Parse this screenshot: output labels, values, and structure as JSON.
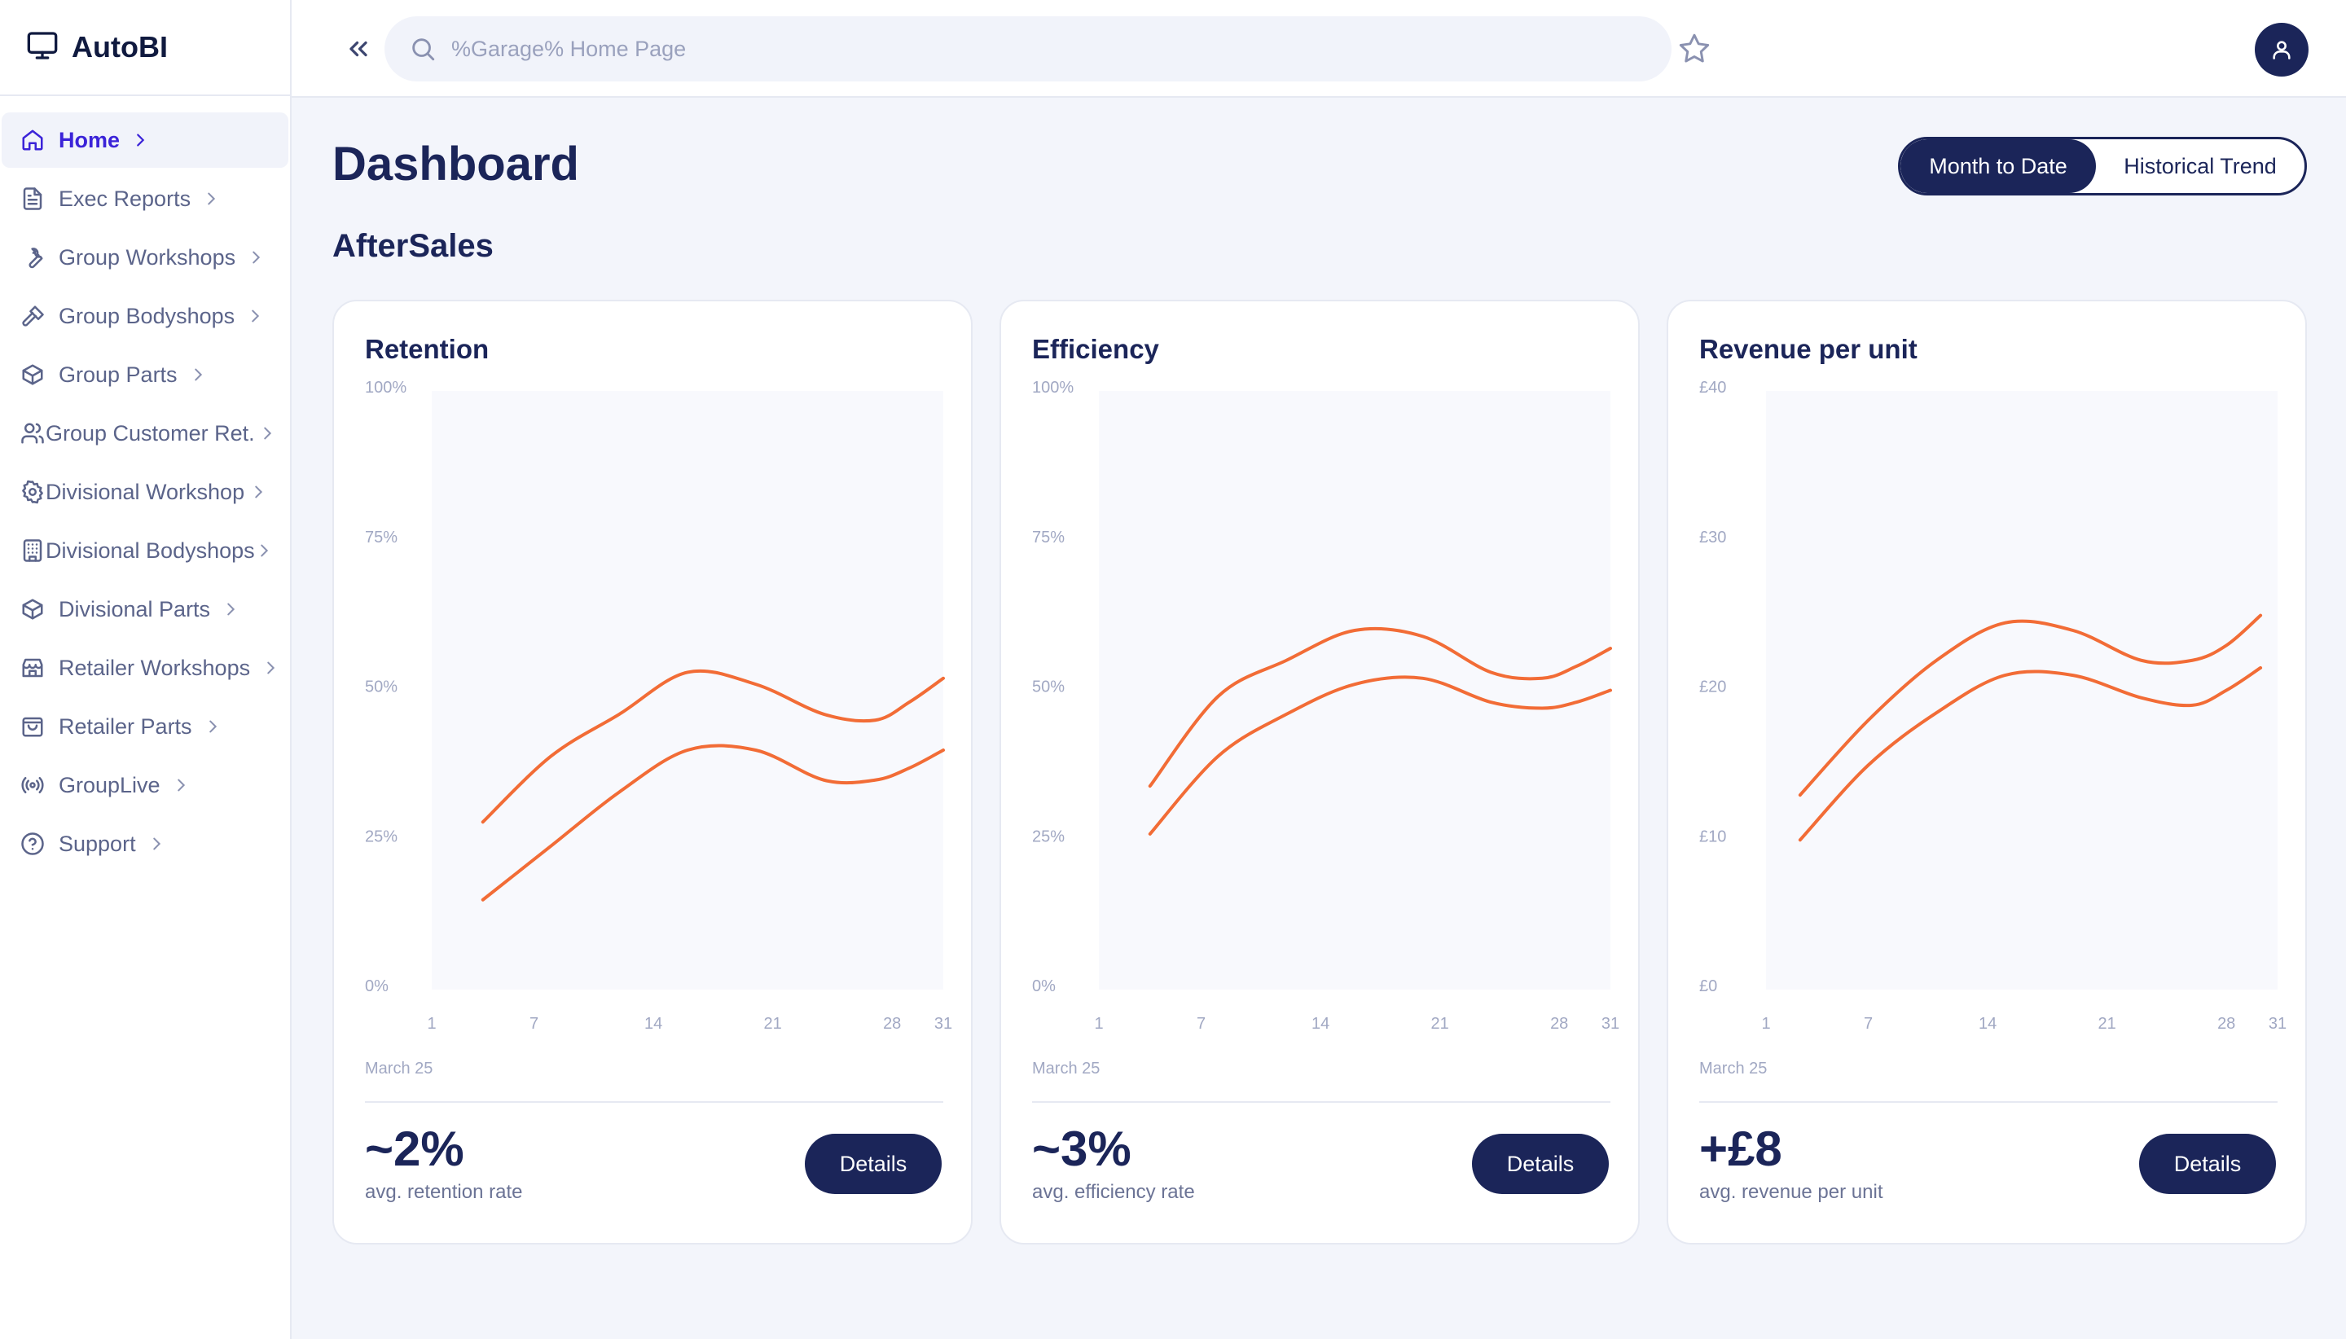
{
  "app": {
    "name": "AutoBI"
  },
  "sidebar": {
    "items": [
      {
        "label": "Home",
        "icon": "home-icon",
        "active": true
      },
      {
        "label": "Exec Reports",
        "icon": "document-icon"
      },
      {
        "label": "Group Workshops",
        "icon": "wrench-icon"
      },
      {
        "label": "Group Bodyshops",
        "icon": "hammer-icon"
      },
      {
        "label": "Group Parts",
        "icon": "box-icon"
      },
      {
        "label": "Group Customer Ret.",
        "icon": "users-icon"
      },
      {
        "label": "Divisional Workshop",
        "icon": "gear-icon"
      },
      {
        "label": "Divisional Bodyshops",
        "icon": "building-icon"
      },
      {
        "label": "Divisional Parts",
        "icon": "box-icon"
      },
      {
        "label": "Retailer Workshops",
        "icon": "store-icon"
      },
      {
        "label": "Retailer Parts",
        "icon": "bag-icon"
      },
      {
        "label": "GroupLive",
        "icon": "broadcast-icon"
      },
      {
        "label": "Support",
        "icon": "help-circle-icon"
      }
    ]
  },
  "topbar": {
    "search_placeholder": "%Garage% Home Page"
  },
  "main": {
    "title": "Dashboard",
    "section": "AfterSales",
    "toggle": {
      "active": "Month to Date",
      "inactive": "Historical Trend"
    },
    "details_label": "Details",
    "month_label": "March 25"
  },
  "colors": {
    "accent": "#1b2559",
    "line": "#f26c36",
    "active_nav": "#3b23d8",
    "plot_bg": "#f8f9fd"
  },
  "chart_data": [
    {
      "type": "line",
      "title": "Retention",
      "x": [
        4,
        8,
        12,
        16,
        20,
        24,
        27,
        29,
        31
      ],
      "xticks": [
        1,
        7,
        14,
        21,
        28,
        31
      ],
      "yticks": [
        "0%",
        "25%",
        "50%",
        "75%",
        "100%"
      ],
      "ylim": [
        0,
        100
      ],
      "xlim": [
        1,
        31
      ],
      "series": [
        {
          "name": "upper",
          "values": [
            28,
            39,
            46,
            53,
            51,
            46,
            45,
            48,
            52
          ]
        },
        {
          "name": "lower",
          "values": [
            15,
            24,
            33,
            40,
            40,
            35,
            35,
            37,
            40
          ]
        }
      ],
      "xlabel": "March 25",
      "value": "~2%",
      "label": "avg. retention rate"
    },
    {
      "type": "line",
      "title": "Efficiency",
      "x": [
        4,
        8,
        12,
        16,
        20,
        24,
        27,
        29,
        31
      ],
      "xticks": [
        1,
        7,
        14,
        21,
        28,
        31
      ],
      "yticks": [
        "0%",
        "25%",
        "50%",
        "75%",
        "100%"
      ],
      "ylim": [
        0,
        100
      ],
      "xlim": [
        1,
        31
      ],
      "series": [
        {
          "name": "upper",
          "values": [
            34,
            49,
            55,
            60,
            59,
            53,
            52,
            54,
            57
          ]
        },
        {
          "name": "lower",
          "values": [
            26,
            39,
            46,
            51,
            52,
            48,
            47,
            48,
            50
          ]
        }
      ],
      "xlabel": "March 25",
      "value": "~3%",
      "label": "avg. efficiency rate"
    },
    {
      "type": "line",
      "title": "Revenue per unit",
      "x": [
        3,
        7,
        11,
        15,
        19,
        23,
        26,
        28,
        30
      ],
      "xticks": [
        1,
        7,
        14,
        21,
        28,
        31
      ],
      "yticks": [
        "£0",
        "£10",
        "£20",
        "£30",
        "£40"
      ],
      "ylim": [
        0,
        40
      ],
      "xlim": [
        1,
        31
      ],
      "series": [
        {
          "name": "upper",
          "values": [
            13,
            18,
            22,
            24.5,
            24,
            22,
            22,
            23,
            25
          ]
        },
        {
          "name": "lower",
          "values": [
            10,
            15,
            18.5,
            21,
            21,
            19.5,
            19,
            20,
            21.5
          ]
        }
      ],
      "xlabel": "March 25",
      "value": "+£8",
      "label": "avg. revenue per unit"
    }
  ]
}
